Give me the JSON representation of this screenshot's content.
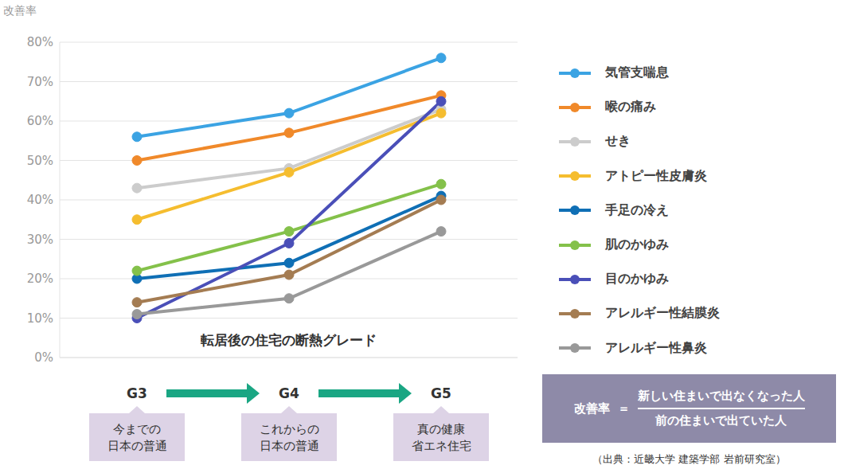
{
  "chart_data": {
    "type": "line",
    "y_label": "改善率",
    "x_label": "転居後の住宅の断熱グレード",
    "categories": [
      "G3",
      "G4",
      "G5"
    ],
    "category_notes": [
      [
        "今までの",
        "日本の普通"
      ],
      [
        "これからの",
        "日本の普通"
      ],
      [
        "真の健康",
        "省エネ住宅"
      ]
    ],
    "ylim": [
      0,
      80
    ],
    "yticks": [
      {
        "value": 0,
        "label": "0%"
      },
      {
        "value": 10,
        "label": "10%"
      },
      {
        "value": 20,
        "label": "20%"
      },
      {
        "value": 30,
        "label": "30%"
      },
      {
        "value": 40,
        "label": "40%"
      },
      {
        "value": 50,
        "label": "50%"
      },
      {
        "value": 60,
        "label": "60%"
      },
      {
        "value": 70,
        "label": "70%"
      },
      {
        "value": 80,
        "label": "80%"
      }
    ],
    "grid": true,
    "legend": "right",
    "marker": "circle",
    "series": [
      {
        "name": "気管支喘息",
        "color": "#3ba3e3",
        "values": [
          56,
          62,
          76
        ]
      },
      {
        "name": "喉の痛み",
        "color": "#f0892a",
        "values": [
          50,
          57,
          66.5
        ]
      },
      {
        "name": "せき",
        "color": "#cccccc",
        "values": [
          43,
          48,
          63
        ]
      },
      {
        "name": "アトピー性皮膚炎",
        "color": "#f5bd2f",
        "values": [
          35,
          47,
          62
        ]
      },
      {
        "name": "手足の冷え",
        "color": "#0f6fb5",
        "values": [
          20,
          24,
          41
        ]
      },
      {
        "name": "肌のかゆみ",
        "color": "#84c14a",
        "values": [
          22,
          32,
          44
        ]
      },
      {
        "name": "目のかゆみ",
        "color": "#4a4fb8",
        "values": [
          10,
          29,
          65
        ]
      },
      {
        "name": "アレルギー性結膜炎",
        "color": "#a47c52",
        "values": [
          14,
          21,
          40
        ]
      },
      {
        "name": "アレルギー性鼻炎",
        "color": "#999999",
        "values": [
          11,
          15,
          32
        ]
      }
    ],
    "annotations": {
      "formula_label": "改善率",
      "equals": "＝",
      "numerator": "新しい住まいで出なくなった人",
      "denominator": "前の住まいで出ていた人",
      "source": "（出典：近畿大学 建築学部 岩前研究室）"
    }
  }
}
